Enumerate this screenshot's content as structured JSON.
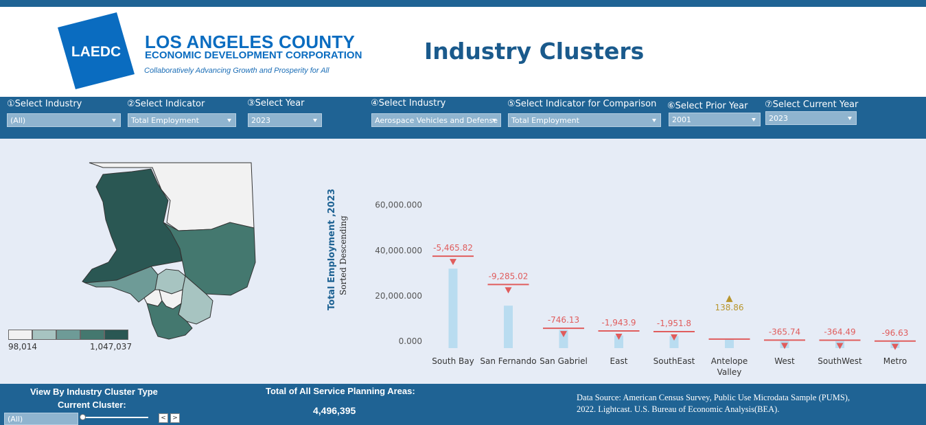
{
  "header": {
    "logo_mark": "LAEDC",
    "org_name_line1": "LOS ANGELES COUNTY",
    "org_name_line2": "ECONOMIC DEVELOPMENT CORPORATION",
    "tagline": "Collaboratively Advancing Growth and Prosperity for All",
    "title": "Industry Clusters",
    "brand_color": "#0a6cc0"
  },
  "filters": [
    {
      "label": "①Select Industry",
      "value": "(All)"
    },
    {
      "label": "②Select Indicator",
      "value": "Total Employment"
    },
    {
      "label": "③Select Year",
      "value": "2023"
    },
    {
      "label": "④Select Industry",
      "value": "Aerospace Vehicles and Defense"
    },
    {
      "label": "⑤Select  Indicator for Comparison",
      "value": "Total Employment"
    },
    {
      "label": "⑥Select Prior Year",
      "value": "2001"
    },
    {
      "label": "⑦Select Current Year",
      "value": "2023"
    }
  ],
  "map_legend": {
    "min": "98,014",
    "max": "1,047,037",
    "colors": [
      "#f2f2f2",
      "#a7c4c1",
      "#6e9b97",
      "#44786f",
      "#2a5753"
    ]
  },
  "chart_data": {
    "type": "bar",
    "ylabel": "Total Employment ,2023",
    "sort_note": "Sorted Descending",
    "y_ticks": [
      "0.000",
      "20,000.000",
      "40,000.000",
      "60,000.000"
    ],
    "ylim": [
      -3000,
      62000
    ],
    "categories": [
      "South Bay",
      "San Fernando",
      "San Gabriel",
      "East",
      "SouthEast",
      "Antelope Valley",
      "West",
      "SouthWest",
      "Metro"
    ],
    "values": [
      32000,
      15700,
      5000,
      2600,
      2300,
      1100,
      150,
      100,
      0
    ],
    "comparison_values": [
      37466,
      24986,
      5746,
      4544,
      4252,
      961,
      516,
      464,
      97
    ],
    "changes": [
      "-5,465.82",
      "-9,285.02",
      "-746.13",
      "-1,943.9",
      "-1,951.8",
      "138.86",
      "-365.74",
      "-364.49",
      "-96.63"
    ],
    "directions": [
      "down",
      "down",
      "down",
      "down",
      "down",
      "up",
      "down",
      "down",
      "down"
    ],
    "bar_color": "#b9dcf0",
    "reference_color": "#e05c5c",
    "increase_color": "#b8962e"
  },
  "footer": {
    "view_by_label": "View By Industry Cluster Type",
    "current_cluster_label": "Current Cluster:",
    "cluster_value": "(All)",
    "total_label": "Total of All Service Planning Areas:",
    "total_value": "4,496,395",
    "source": "Data Source: American Census Survey, Public Use Microdata Sample (PUMS), 2022. Lightcast. U.S. Bureau of Economic Analysis(BEA).",
    "prev_label": "<",
    "next_label": ">"
  }
}
